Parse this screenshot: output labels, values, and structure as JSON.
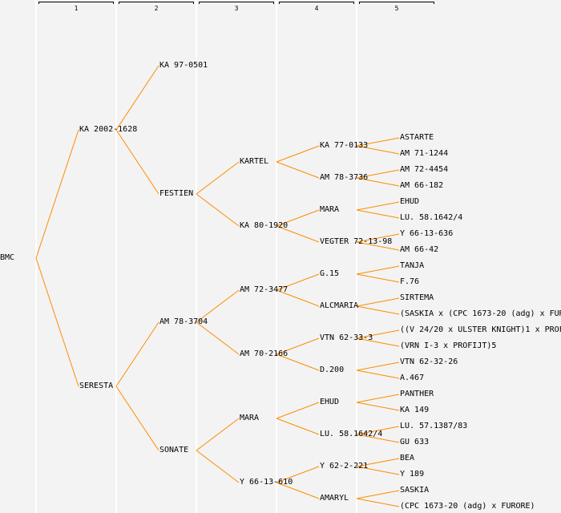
{
  "generation_headers": [
    "1",
    "2",
    "3",
    "4",
    "5"
  ],
  "line_color": "#ff8c00",
  "pedigree": {
    "name": "BMC",
    "sire": {
      "name": "KA 2002-1628",
      "sire": {
        "name": "KA 97-0501"
      },
      "dam": {
        "name": "FESTIEN",
        "sire": {
          "name": "KARTEL",
          "sire": {
            "name": "KA 77-0133",
            "sire": {
              "name": "ASTARTE"
            },
            "dam": {
              "name": "AM 71-1244"
            }
          },
          "dam": {
            "name": "AM 78-3736",
            "sire": {
              "name": "AM 72-4454"
            },
            "dam": {
              "name": "AM 66-182"
            }
          }
        },
        "dam": {
          "name": "KA 80-1920",
          "sire": {
            "name": "MARA",
            "sire": {
              "name": "EHUD"
            },
            "dam": {
              "name": "LU. 58.1642/4"
            }
          },
          "dam": {
            "name": "VEGTER 72-13-98",
            "sire": {
              "name": "Y 66-13-636"
            },
            "dam": {
              "name": "AM 66-42"
            }
          }
        }
      }
    },
    "dam": {
      "name": "SERESTA",
      "sire": {
        "name": "AM 78-3704",
        "sire": {
          "name": "AM 72-3477",
          "sire": {
            "name": "G.15",
            "sire": {
              "name": "TANJA"
            },
            "dam": {
              "name": "F.76"
            }
          },
          "dam": {
            "name": "ALCMARIA",
            "sire": {
              "name": "SIRTEMA"
            },
            "dam": {
              "name": "(SASKIA x (CPC 1673-20 (adg) x FUR"
            }
          }
        },
        "dam": {
          "name": "AM 70-2166",
          "sire": {
            "name": "VTN 62-33-3",
            "sire": {
              "name": "((V 24/20 x ULSTER KNIGHT)1 x PROF"
            },
            "dam": {
              "name": "(VRN I-3 x PROFIJT)5"
            }
          },
          "dam": {
            "name": "D.200",
            "sire": {
              "name": "VTN 62-32-26"
            },
            "dam": {
              "name": "A.467"
            }
          }
        }
      },
      "dam": {
        "name": "SONATE",
        "sire": {
          "name": "MARA",
          "sire": {
            "name": "EHUD",
            "sire": {
              "name": "PANTHER"
            },
            "dam": {
              "name": "KA 149"
            }
          },
          "dam": {
            "name": "LU. 58.1642/4",
            "sire": {
              "name": "LU. 57.1387/83"
            },
            "dam": {
              "name": "GU 633"
            }
          }
        },
        "dam": {
          "name": "Y 66-13-610",
          "sire": {
            "name": "Y 62-2-221",
            "sire": {
              "name": "BEA"
            },
            "dam": {
              "name": "Y 189"
            }
          },
          "dam": {
            "name": "AMARYL",
            "sire": {
              "name": "SASKIA"
            },
            "dam": {
              "name": "(CPC 1673-20 (adg) x FURORE)"
            }
          }
        }
      }
    }
  }
}
